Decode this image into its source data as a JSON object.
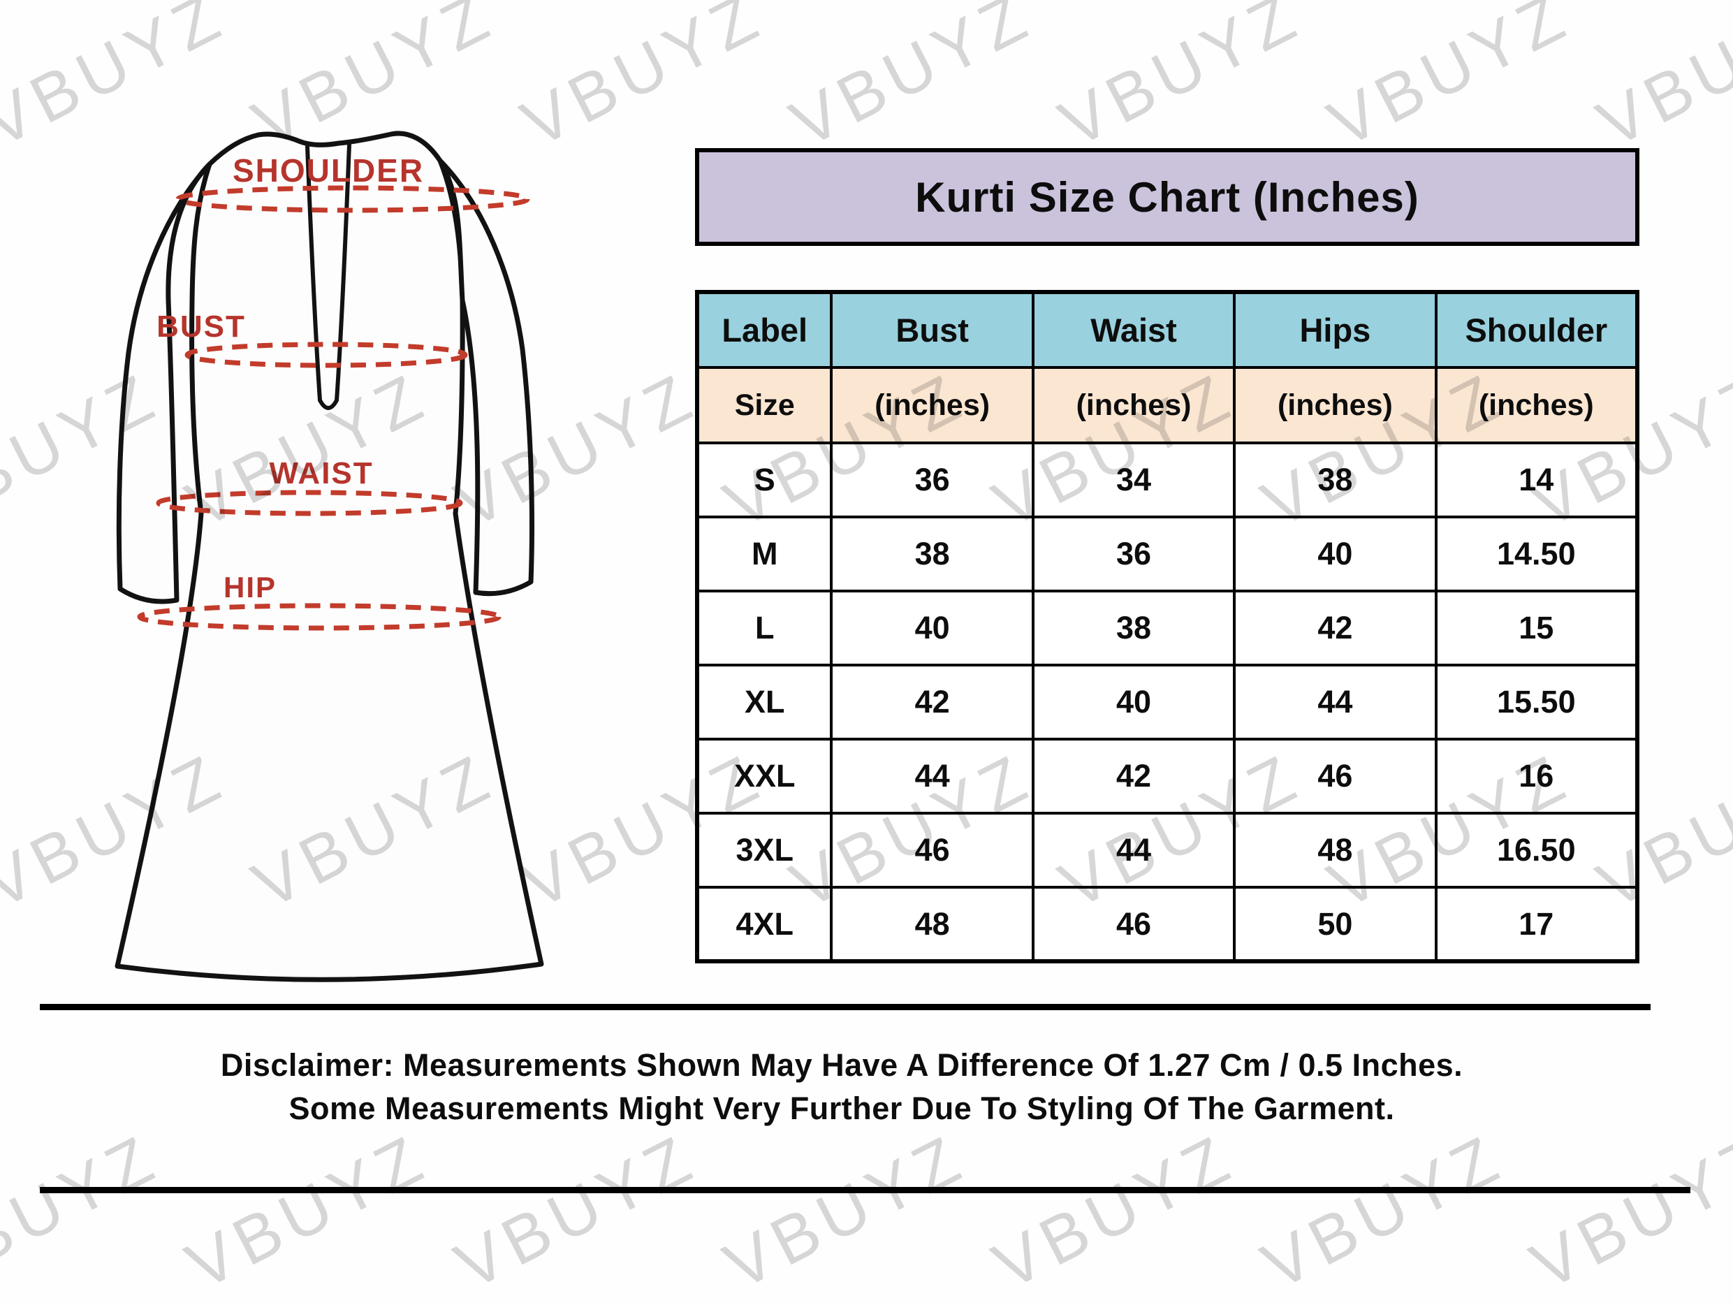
{
  "watermark": {
    "text": "VBUYZ"
  },
  "title": {
    "text": "Kurti Size Chart (Inches)"
  },
  "diagram": {
    "labels": [
      "SHOULDER",
      "BUST",
      "WAIST",
      "HIP"
    ]
  },
  "table": {
    "columns": [
      "Label",
      "Bust",
      "Waist",
      "Hips",
      "Shoulder"
    ],
    "units": [
      "Size",
      "(inches)",
      "(inches)",
      "(inches)",
      "(inches)"
    ],
    "rows": [
      [
        "S",
        "36",
        "34",
        "38",
        "14"
      ],
      [
        "M",
        "38",
        "36",
        "40",
        "14.50"
      ],
      [
        "L",
        "40",
        "38",
        "42",
        "15"
      ],
      [
        "XL",
        "42",
        "40",
        "44",
        "15.50"
      ],
      [
        "XXL",
        "44",
        "42",
        "46",
        "16"
      ],
      [
        "3XL",
        "46",
        "44",
        "48",
        "16.50"
      ],
      [
        "4XL",
        "48",
        "46",
        "50",
        "17"
      ]
    ]
  },
  "disclaimer": {
    "line1": "Disclaimer: Measurements Shown May Have A Difference Of 1.27 Cm / 0.5 Inches.",
    "line2": "Some Measurements Might Very Further Due To Styling Of The Garment."
  },
  "colors": {
    "title_bg": "#cbc2dc",
    "header_bg": "#99d1de",
    "unit_bg": "#fbe6d2",
    "label_red": "#b5342c",
    "dash_red": "#c23b2b",
    "watermark_gray": "#d7d7d7"
  }
}
